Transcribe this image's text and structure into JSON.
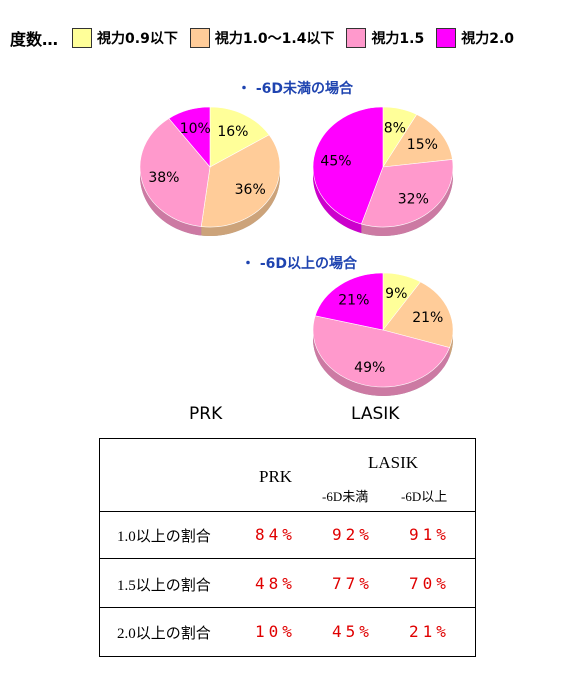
{
  "legend": {
    "title": "度数…",
    "items": [
      {
        "label": "視力0.9以下",
        "color": "#ffff99"
      },
      {
        "label": "視力1.0〜1.4以下",
        "color": "#ffcc99"
      },
      {
        "label": "視力1.5",
        "color": "#ff99cc"
      },
      {
        "label": "視力2.0",
        "color": "#ff00ff"
      }
    ]
  },
  "sections": {
    "under6d": "・ -6D未満の場合",
    "over6d": "・ -6D以上の場合"
  },
  "captions": {
    "prk": "PRK",
    "lasik": "LASIK"
  },
  "chart_data": [
    {
      "type": "pie",
      "title": "",
      "labels": [
        "視力0.9以下",
        "視力1.0〜1.4以下",
        "視力1.5",
        "視力2.0"
      ],
      "values": [
        16,
        36,
        38,
        10
      ],
      "value_labels": [
        "16%",
        "36%",
        "38%",
        "10%"
      ],
      "colors": [
        "#ffff99",
        "#ffcc99",
        "#ff99cc",
        "#ff00ff"
      ]
    },
    {
      "type": "pie",
      "title": "",
      "labels": [
        "視力0.9以下",
        "視力1.0〜1.4以下",
        "視力1.5",
        "視力2.0"
      ],
      "values": [
        8,
        15,
        32,
        45
      ],
      "value_labels": [
        "8%",
        "15%",
        "32%",
        "45%"
      ],
      "colors": [
        "#ffff99",
        "#ffcc99",
        "#ff99cc",
        "#ff00ff"
      ]
    },
    {
      "type": "pie",
      "title": "",
      "labels": [
        "視力0.9以下",
        "視力1.0〜1.4以下",
        "視力1.5",
        "視力2.0"
      ],
      "values": [
        9,
        21,
        49,
        21
      ],
      "value_labels": [
        "9%",
        "21%",
        "49%",
        "21%"
      ],
      "colors": [
        "#ffff99",
        "#ffcc99",
        "#ff99cc",
        "#ff00ff"
      ]
    },
    {
      "type": "table",
      "columns": [
        "",
        "PRK",
        "LASIK -6D未満",
        "LASIK -6D以上"
      ],
      "rows": [
        [
          "1.0以上の割合",
          "84%",
          "92%",
          "91%"
        ],
        [
          "1.5以上の割合",
          "48%",
          "77%",
          "70%"
        ],
        [
          "2.0以上の割合",
          "10%",
          "45%",
          "21%"
        ]
      ]
    }
  ],
  "table": {
    "header": {
      "prk": "PRK",
      "lasik": "LASIK",
      "sub1": "-6D未満",
      "sub2": "-6D以上"
    },
    "rows": [
      {
        "label": "1.0以上の割合",
        "prk": "84%",
        "lasik_under": "92%",
        "lasik_over": "91%"
      },
      {
        "label": "1.5以上の割合",
        "prk": "48%",
        "lasik_under": "77%",
        "lasik_over": "70%"
      },
      {
        "label": "2.0以上の割合",
        "prk": "10%",
        "lasik_under": "45%",
        "lasik_over": "21%"
      }
    ]
  }
}
